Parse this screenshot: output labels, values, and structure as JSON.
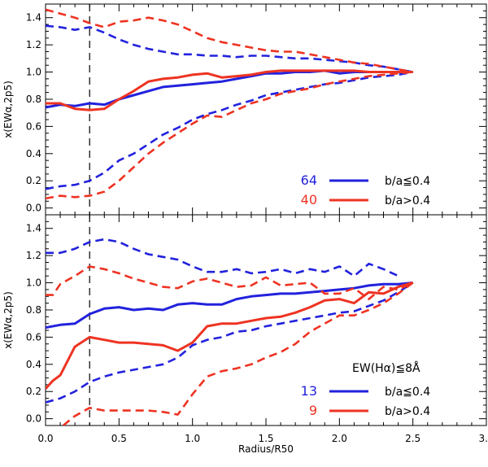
{
  "colors": {
    "blue": "#2222dd",
    "red": "#ee3322",
    "axis": "#000000"
  },
  "x_axis": {
    "label": "Radius/R50",
    "range": [
      0,
      3
    ],
    "ticks": [
      "0.0",
      "0.5",
      "1.0",
      "1.5",
      "2.0",
      "2.5",
      "3.0"
    ]
  },
  "chart_data": [
    {
      "type": "line",
      "panel": "top",
      "ylabel": "x(EWα,2p5)",
      "xlim": [
        0,
        3
      ],
      "ylim": [
        -0.05,
        1.5
      ],
      "yticks": [
        "0.0",
        "0.2",
        "0.4",
        "0.6",
        "0.8",
        "1.0",
        "1.2",
        "1.4"
      ],
      "reference_line_x": 0.3,
      "legend": {
        "placement": "bottom-right",
        "entries": [
          {
            "count": "64",
            "label": "b/a≦0.4",
            "color": "blue"
          },
          {
            "count": "40",
            "label": "b/a>0.4",
            "color": "red"
          }
        ]
      },
      "series": [
        {
          "name": "b/a≦0.4 median",
          "color": "blue",
          "style": "solid",
          "x": [
            0,
            0.1,
            0.2,
            0.3,
            0.4,
            0.5,
            0.6,
            0.7,
            0.8,
            0.9,
            1.0,
            1.1,
            1.2,
            1.3,
            1.4,
            1.5,
            1.6,
            1.7,
            1.8,
            1.9,
            2.0,
            2.1,
            2.2,
            2.3,
            2.4,
            2.5
          ],
          "y": [
            0.74,
            0.76,
            0.75,
            0.77,
            0.76,
            0.8,
            0.83,
            0.86,
            0.89,
            0.9,
            0.91,
            0.92,
            0.93,
            0.95,
            0.97,
            0.99,
            0.99,
            1.0,
            1.0,
            1.01,
            0.99,
            1.0,
            1.0,
            1.0,
            1.0,
            1.0
          ]
        },
        {
          "name": "b/a≦0.4 upper",
          "color": "blue",
          "style": "dashed",
          "x": [
            0,
            0.1,
            0.2,
            0.3,
            0.4,
            0.5,
            0.6,
            0.7,
            0.8,
            0.9,
            1.0,
            1.1,
            1.2,
            1.3,
            1.4,
            1.5,
            1.6,
            1.7,
            1.8,
            1.9,
            2.0,
            2.1,
            2.2,
            2.3,
            2.4,
            2.5
          ],
          "y": [
            1.34,
            1.33,
            1.31,
            1.33,
            1.29,
            1.24,
            1.2,
            1.17,
            1.15,
            1.13,
            1.13,
            1.12,
            1.12,
            1.11,
            1.12,
            1.12,
            1.11,
            1.1,
            1.1,
            1.09,
            1.08,
            1.07,
            1.05,
            1.04,
            1.02,
            1.0
          ]
        },
        {
          "name": "b/a≦0.4 lower",
          "color": "blue",
          "style": "dashed",
          "x": [
            0,
            0.1,
            0.2,
            0.3,
            0.4,
            0.5,
            0.6,
            0.7,
            0.8,
            0.9,
            1.0,
            1.1,
            1.2,
            1.3,
            1.4,
            1.5,
            1.6,
            1.7,
            1.8,
            1.9,
            2.0,
            2.1,
            2.2,
            2.3,
            2.4,
            2.5
          ],
          "y": [
            0.14,
            0.16,
            0.17,
            0.2,
            0.26,
            0.35,
            0.4,
            0.47,
            0.54,
            0.59,
            0.65,
            0.69,
            0.72,
            0.76,
            0.79,
            0.83,
            0.85,
            0.87,
            0.89,
            0.91,
            0.92,
            0.94,
            0.96,
            0.97,
            0.98,
            1.0
          ]
        },
        {
          "name": "b/a>0.4 median",
          "color": "red",
          "style": "solid",
          "x": [
            0,
            0.1,
            0.2,
            0.3,
            0.4,
            0.5,
            0.6,
            0.7,
            0.8,
            0.9,
            1.0,
            1.1,
            1.2,
            1.3,
            1.4,
            1.5,
            1.6,
            1.7,
            1.8,
            1.9,
            2.0,
            2.1,
            2.2,
            2.3,
            2.4,
            2.5
          ],
          "y": [
            0.77,
            0.77,
            0.73,
            0.72,
            0.73,
            0.8,
            0.86,
            0.93,
            0.95,
            0.96,
            0.98,
            0.99,
            0.96,
            0.97,
            0.98,
            1.0,
            1.01,
            1.01,
            1.01,
            1.01,
            1.01,
            1.01,
            1.0,
            1.0,
            1.0,
            1.0
          ]
        },
        {
          "name": "b/a>0.4 upper",
          "color": "red",
          "style": "dashed",
          "x": [
            0,
            0.1,
            0.2,
            0.3,
            0.4,
            0.5,
            0.6,
            0.7,
            0.8,
            0.9,
            1.0,
            1.1,
            1.2,
            1.3,
            1.4,
            1.5,
            1.6,
            1.7,
            1.8,
            1.9,
            2.0,
            2.1,
            2.2,
            2.3,
            2.4,
            2.5
          ],
          "y": [
            1.46,
            1.43,
            1.4,
            1.36,
            1.33,
            1.37,
            1.38,
            1.4,
            1.38,
            1.35,
            1.3,
            1.25,
            1.22,
            1.2,
            1.18,
            1.16,
            1.15,
            1.15,
            1.13,
            1.11,
            1.09,
            1.07,
            1.06,
            1.04,
            1.02,
            1.0
          ]
        },
        {
          "name": "b/a>0.4 lower",
          "color": "red",
          "style": "dashed",
          "x": [
            0,
            0.1,
            0.2,
            0.3,
            0.4,
            0.5,
            0.6,
            0.7,
            0.8,
            0.9,
            1.0,
            1.1,
            1.2,
            1.3,
            1.4,
            1.5,
            1.6,
            1.7,
            1.8,
            1.9,
            2.0,
            2.1,
            2.2,
            2.3,
            2.4,
            2.5
          ],
          "y": [
            0.07,
            0.09,
            0.08,
            0.09,
            0.12,
            0.2,
            0.3,
            0.4,
            0.48,
            0.55,
            0.62,
            0.68,
            0.67,
            0.72,
            0.77,
            0.8,
            0.84,
            0.86,
            0.88,
            0.91,
            0.93,
            0.95,
            0.97,
            0.98,
            0.99,
            1.0
          ]
        }
      ]
    },
    {
      "type": "line",
      "panel": "bottom",
      "ylabel": "x(EWα,2p5)",
      "xlabel": "Radius/R50",
      "xlim": [
        0,
        3
      ],
      "ylim": [
        -0.05,
        1.5
      ],
      "yticks": [
        "0.0",
        "0.2",
        "0.4",
        "0.6",
        "0.8",
        "1.0",
        "1.2",
        "1.4"
      ],
      "reference_line_x": 0.3,
      "legend": {
        "placement": "bottom-right",
        "title": "EW(Hα)≦8Å",
        "entries": [
          {
            "count": "13",
            "label": "b/a≦0.4",
            "color": "blue"
          },
          {
            "count": "9",
            "label": "b/a>0.4",
            "color": "red"
          }
        ]
      },
      "series": [
        {
          "name": "b/a≦0.4 median",
          "color": "blue",
          "style": "solid",
          "x": [
            0,
            0.1,
            0.2,
            0.3,
            0.4,
            0.5,
            0.6,
            0.7,
            0.8,
            0.9,
            1.0,
            1.1,
            1.2,
            1.3,
            1.4,
            1.5,
            1.6,
            1.7,
            1.8,
            1.9,
            2.0,
            2.1,
            2.2,
            2.3,
            2.4,
            2.5
          ],
          "y": [
            0.67,
            0.69,
            0.7,
            0.77,
            0.81,
            0.82,
            0.8,
            0.81,
            0.8,
            0.84,
            0.85,
            0.84,
            0.84,
            0.88,
            0.9,
            0.91,
            0.92,
            0.92,
            0.93,
            0.94,
            0.95,
            0.96,
            0.98,
            0.99,
            0.99,
            1.0
          ]
        },
        {
          "name": "b/a≦0.4 upper",
          "color": "blue",
          "style": "dashed",
          "x": [
            0,
            0.1,
            0.2,
            0.3,
            0.4,
            0.5,
            0.6,
            0.7,
            0.8,
            0.9,
            1.0,
            1.1,
            1.2,
            1.3,
            1.4,
            1.5,
            1.6,
            1.7,
            1.8,
            1.9,
            2.0,
            2.1,
            2.2,
            2.3,
            2.4
          ],
          "y": [
            1.22,
            1.22,
            1.25,
            1.3,
            1.32,
            1.3,
            1.25,
            1.21,
            1.19,
            1.17,
            1.12,
            1.08,
            1.08,
            1.1,
            1.07,
            1.08,
            1.1,
            1.07,
            1.1,
            1.08,
            1.12,
            1.05,
            1.14,
            1.1,
            1.05
          ]
        },
        {
          "name": "b/a≦0.4 lower",
          "color": "blue",
          "style": "dashed",
          "x": [
            0,
            0.1,
            0.2,
            0.3,
            0.4,
            0.5,
            0.6,
            0.7,
            0.8,
            0.9,
            1.0,
            1.1,
            1.2,
            1.3,
            1.4,
            1.5,
            1.6,
            1.7,
            1.8,
            1.9,
            2.0,
            2.1,
            2.2,
            2.3,
            2.4,
            2.5
          ],
          "y": [
            0.12,
            0.15,
            0.2,
            0.27,
            0.31,
            0.34,
            0.36,
            0.38,
            0.4,
            0.45,
            0.54,
            0.58,
            0.6,
            0.64,
            0.65,
            0.68,
            0.7,
            0.72,
            0.74,
            0.76,
            0.78,
            0.79,
            0.83,
            0.87,
            0.93,
            1.0
          ]
        },
        {
          "name": "b/a>0.4 median",
          "color": "red",
          "style": "solid",
          "x": [
            0,
            0.05,
            0.1,
            0.2,
            0.3,
            0.4,
            0.5,
            0.6,
            0.7,
            0.8,
            0.9,
            1.0,
            1.1,
            1.2,
            1.3,
            1.4,
            1.5,
            1.6,
            1.7,
            1.8,
            1.9,
            2.0,
            2.1,
            2.2,
            2.3,
            2.4,
            2.5
          ],
          "y": [
            0.22,
            0.28,
            0.32,
            0.53,
            0.6,
            0.58,
            0.56,
            0.56,
            0.55,
            0.54,
            0.5,
            0.56,
            0.68,
            0.7,
            0.7,
            0.72,
            0.74,
            0.75,
            0.78,
            0.82,
            0.87,
            0.88,
            0.85,
            0.93,
            0.92,
            0.97,
            1.0
          ]
        },
        {
          "name": "b/a>0.4 upper",
          "color": "red",
          "style": "dashed",
          "x": [
            0,
            0.05,
            0.1,
            0.2,
            0.3,
            0.4,
            0.5,
            0.6,
            0.7,
            0.8,
            0.9,
            1.0,
            1.1,
            1.2,
            1.3,
            1.4,
            1.5,
            1.6,
            1.7,
            1.8,
            1.9,
            2.0,
            2.1,
            2.2,
            2.3,
            2.4,
            2.5
          ],
          "y": [
            0.91,
            0.91,
            0.99,
            1.05,
            1.12,
            1.1,
            1.07,
            1.03,
            1.0,
            0.97,
            0.96,
            1.01,
            1.03,
            1.0,
            0.97,
            0.98,
            1.04,
            0.98,
            0.99,
            1.0,
            0.92,
            0.92,
            0.96,
            0.88,
            0.97,
            0.95,
            1.0
          ]
        },
        {
          "name": "b/a>0.4 lower",
          "color": "red",
          "style": "dashed",
          "x": [
            0.12,
            0.2,
            0.3,
            0.4,
            0.5,
            0.6,
            0.7,
            0.8,
            0.9,
            1.0,
            1.1,
            1.2,
            1.3,
            1.4,
            1.5,
            1.6,
            1.7,
            1.8,
            1.9,
            2.0,
            2.1,
            2.2,
            2.3,
            2.4,
            2.5
          ],
          "y": [
            -0.05,
            0.02,
            0.08,
            0.06,
            0.06,
            0.06,
            0.06,
            0.05,
            0.03,
            0.18,
            0.31,
            0.35,
            0.37,
            0.4,
            0.45,
            0.49,
            0.55,
            0.64,
            0.7,
            0.76,
            0.76,
            0.8,
            0.85,
            0.92,
            1.0
          ]
        }
      ]
    }
  ]
}
